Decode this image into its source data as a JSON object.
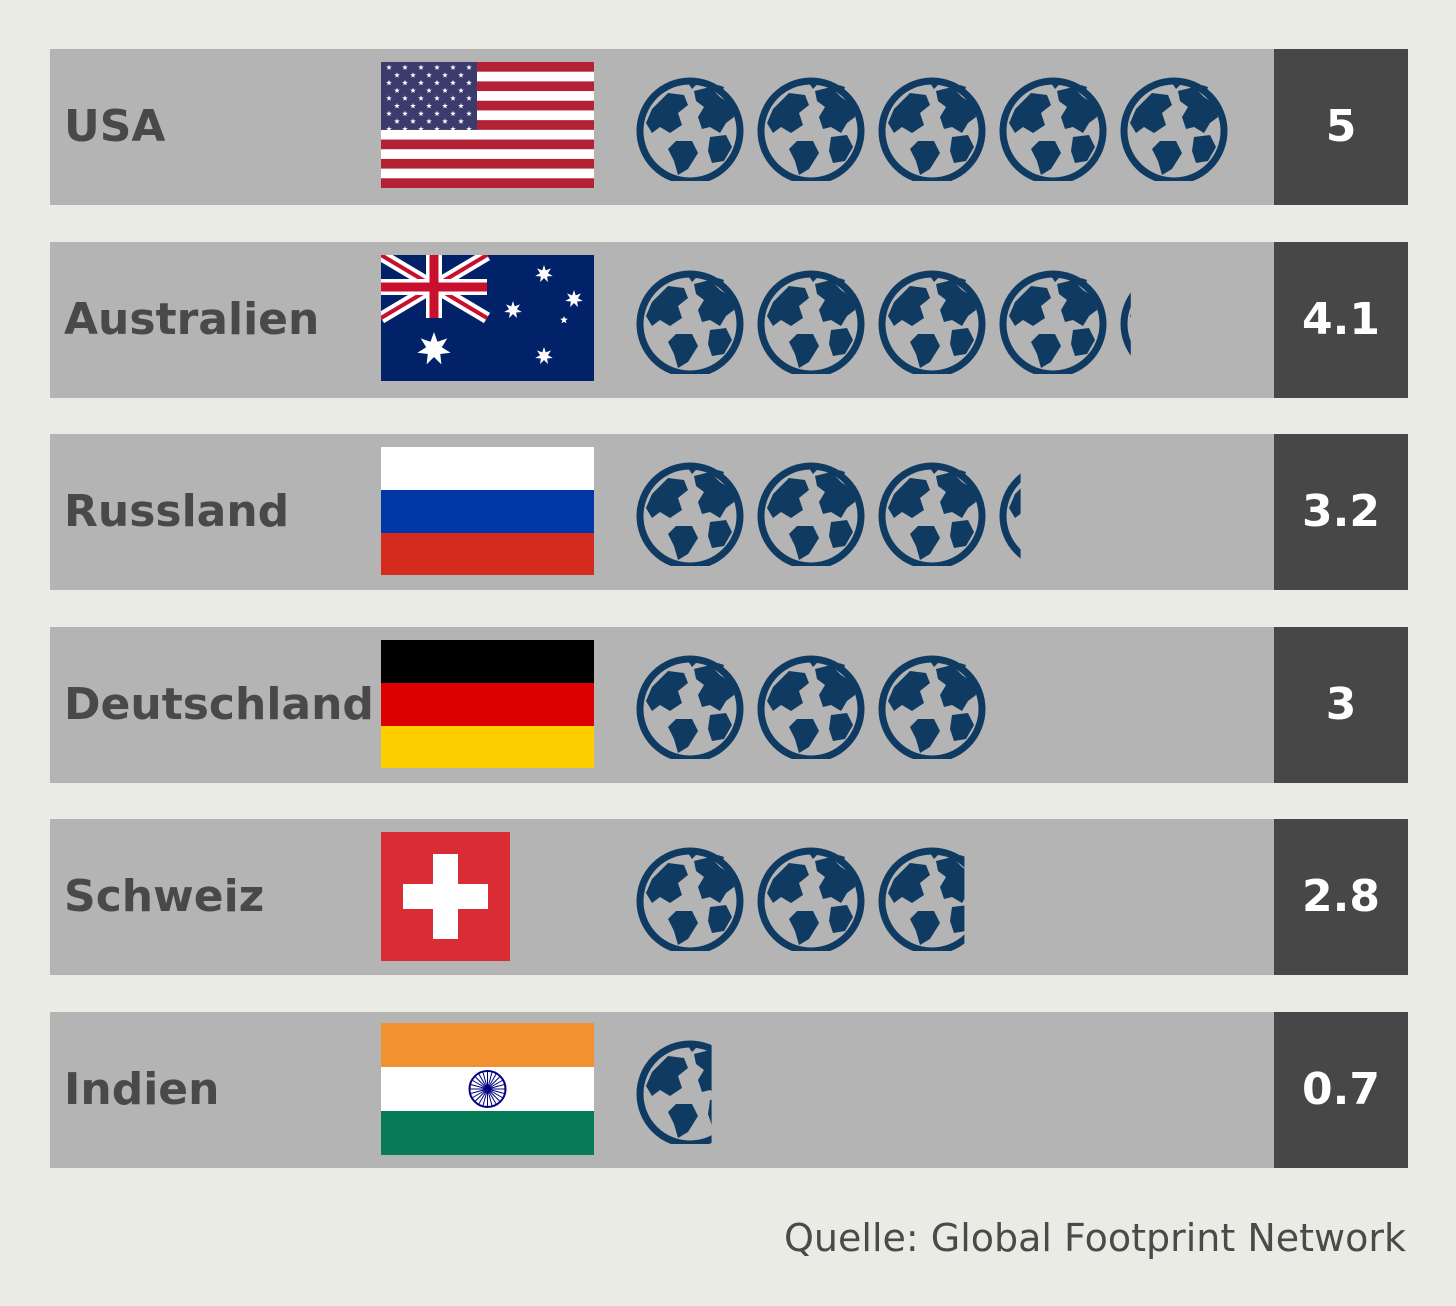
{
  "chart_data": {
    "type": "bar",
    "categories": [
      "USA",
      "Australien",
      "Russland",
      "Deutschland",
      "Schweiz",
      "Indien"
    ],
    "values": [
      5,
      4.1,
      3.2,
      3,
      2.8,
      0.7
    ],
    "value_labels": [
      "5",
      "4.1",
      "3.2",
      "3",
      "2.8",
      "0.7"
    ],
    "flags": [
      "usa-flag",
      "australia-flag",
      "russia-flag",
      "germany-flag",
      "switzerland-flag",
      "india-flag"
    ],
    "unit_icon": "globe-icon",
    "xlim": [
      0,
      5
    ]
  },
  "source": "Quelle: Global Footprint Network",
  "colors": {
    "background": "#ebebe6",
    "row": "#b4b4b4",
    "value_box": "#474747",
    "globe": "#0f3b63",
    "text": "#494949"
  }
}
